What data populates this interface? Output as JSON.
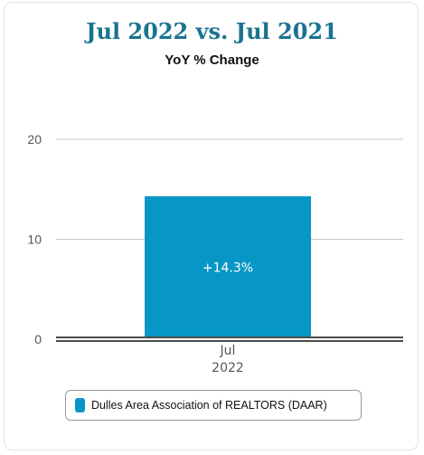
{
  "header": {
    "title": "Jul 2022 vs. Jul 2021",
    "subtitle": "YoY % Change"
  },
  "colors": {
    "bar": "#0797c6",
    "title": "#1a7390",
    "grid": "#c8c8c8",
    "axis": "#111111"
  },
  "chart_data": {
    "type": "bar",
    "title": "Jul 2022 vs. Jul 2021",
    "subtitle": "YoY % Change",
    "categories": [
      "Jul 2022"
    ],
    "category_lines": [
      [
        "Jul",
        "2022"
      ]
    ],
    "series": [
      {
        "name": "Dulles Area Association of REALTORS (DAAR)",
        "values": [
          14.3
        ]
      }
    ],
    "data_labels": [
      "+14.3%"
    ],
    "ylim": [
      0,
      20
    ],
    "yticks": [
      "0",
      "10",
      "20"
    ],
    "grid": true,
    "legend": "bottom"
  }
}
